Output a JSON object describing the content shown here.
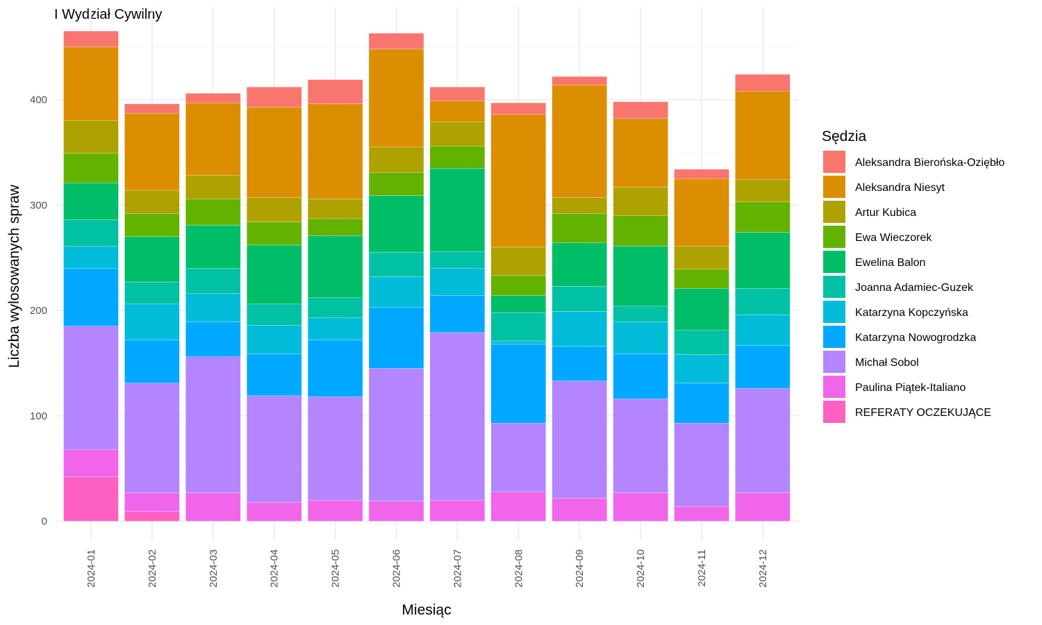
{
  "chart_data": {
    "type": "bar",
    "stacked": true,
    "title": "I Wydział Cywilny",
    "xlabel": "Miesiąc",
    "ylabel": "Liczba wylosowanych spraw",
    "ylim": [
      0,
      480
    ],
    "yticks": [
      0,
      100,
      200,
      300,
      400
    ],
    "grid": true,
    "legend_title": "Sędzia",
    "legend_position": "right",
    "categories": [
      "2024-01",
      "2024-02",
      "2024-03",
      "2024-04",
      "2024-05",
      "2024-06",
      "2024-07",
      "2024-08",
      "2024-09",
      "2024-10",
      "2024-11",
      "2024-12"
    ],
    "series": [
      {
        "name": "REFERATY OCZEKUJĄCE",
        "color": "#FF61C3",
        "values": [
          42,
          9,
          0,
          0,
          0,
          0,
          0,
          0,
          0,
          0,
          0,
          0
        ]
      },
      {
        "name": "Paulina Piątek-Italiano",
        "color": "#F066EA",
        "values": [
          26,
          18,
          27,
          18,
          20,
          19,
          20,
          28,
          22,
          27,
          14,
          27
        ]
      },
      {
        "name": "Michał Sobol",
        "color": "#B385FF",
        "values": [
          117,
          104,
          129,
          101,
          98,
          126,
          159,
          65,
          111,
          89,
          79,
          99
        ]
      },
      {
        "name": "Katarzyna Nowogrodzka",
        "color": "#00A9FF",
        "values": [
          55,
          41,
          33,
          40,
          54,
          58,
          35,
          75,
          33,
          43,
          38,
          41
        ]
      },
      {
        "name": "Katarzyna Kopczyńska",
        "color": "#00BCD8",
        "values": [
          21,
          34,
          27,
          27,
          21,
          29,
          26,
          3,
          33,
          30,
          27,
          29
        ]
      },
      {
        "name": "Joanna Adamiec-Guzek",
        "color": "#00C1A3",
        "values": [
          25,
          21,
          24,
          20,
          19,
          23,
          16,
          27,
          24,
          15,
          23,
          25
        ]
      },
      {
        "name": "Ewelina Balon",
        "color": "#00BE67",
        "values": [
          35,
          43,
          41,
          56,
          59,
          54,
          79,
          16,
          41,
          57,
          40,
          53
        ]
      },
      {
        "name": "Ewa Wieczorek",
        "color": "#64B200",
        "values": [
          28,
          22,
          25,
          22,
          16,
          22,
          21,
          19,
          28,
          29,
          18,
          29
        ]
      },
      {
        "name": "Artur Kubica",
        "color": "#AEA200",
        "values": [
          31,
          22,
          22,
          23,
          19,
          24,
          23,
          27,
          15,
          27,
          22,
          21
        ]
      },
      {
        "name": "Aleksandra Niesyt",
        "color": "#DB8E00",
        "values": [
          70,
          73,
          69,
          86,
          90,
          93,
          20,
          126,
          107,
          65,
          64,
          84
        ]
      },
      {
        "name": "Aleksandra Bierońska-Oziębło",
        "color": "#F8766D",
        "values": [
          15,
          9,
          9,
          19,
          23,
          15,
          13,
          11,
          8,
          16,
          9,
          16
        ]
      }
    ],
    "legend_order": [
      "Aleksandra Bierońska-Oziębło",
      "Aleksandra Niesyt",
      "Artur Kubica",
      "Ewa Wieczorek",
      "Ewelina Balon",
      "Joanna Adamiec-Guzek",
      "Katarzyna Kopczyńska",
      "Katarzyna Nowogrodzka",
      "Michał Sobol",
      "Paulina Piątek-Italiano",
      "REFERATY OCZEKUJĄCE"
    ]
  }
}
